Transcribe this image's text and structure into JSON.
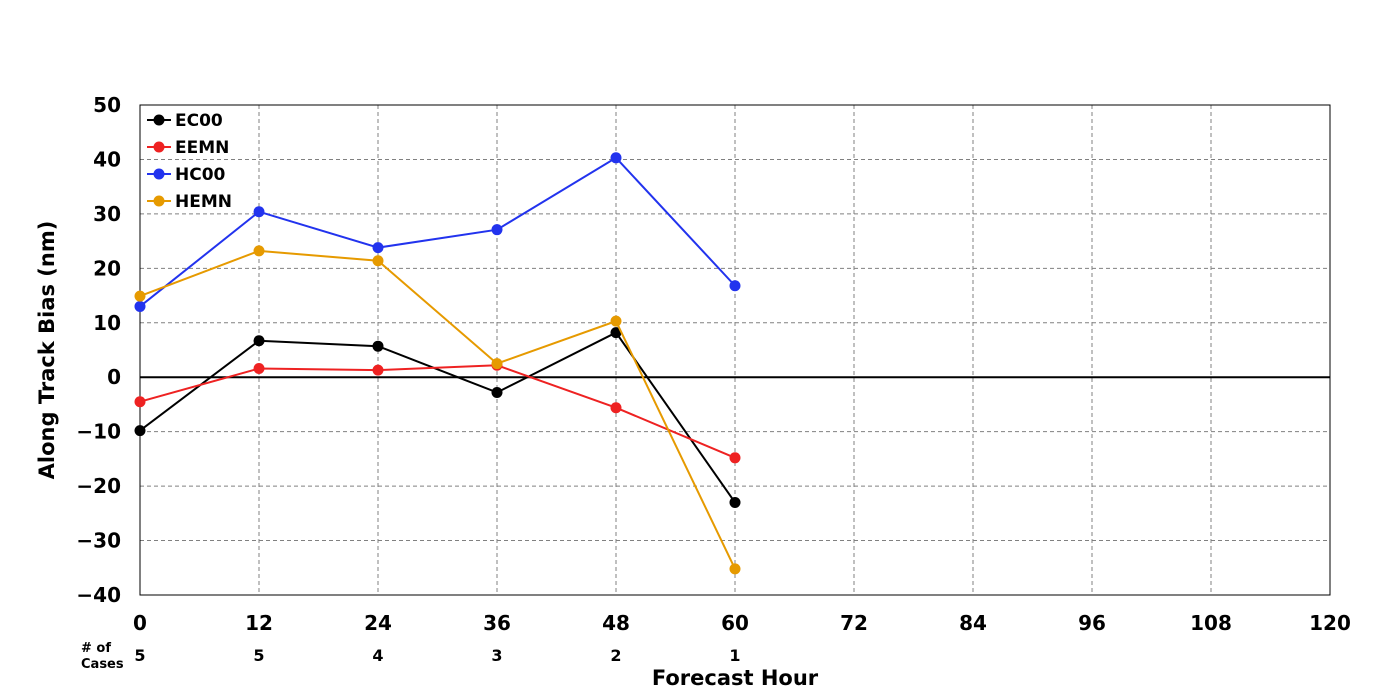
{
  "chart_data": {
    "type": "line",
    "xlabel": "Forecast Hour",
    "ylabel": "Along Track Bias (nm)",
    "xlim": [
      0,
      120
    ],
    "ylim": [
      -40,
      50
    ],
    "xticks": [
      0,
      12,
      24,
      36,
      48,
      60,
      72,
      84,
      96,
      108,
      120
    ],
    "yticks": [
      -40,
      -30,
      -20,
      -10,
      0,
      10,
      20,
      30,
      40,
      50
    ],
    "ytick_labels": [
      "−40",
      "−30",
      "−20",
      "−10",
      "0",
      "10",
      "20",
      "30",
      "40",
      "50"
    ],
    "grid": true,
    "legend_position": "top-left",
    "x": [
      0,
      12,
      24,
      36,
      48,
      60
    ],
    "series": [
      {
        "name": "EC00",
        "color": "#000000",
        "values": [
          -9.8,
          6.7,
          5.7,
          -2.8,
          8.2,
          -23.0
        ]
      },
      {
        "name": "EEMN",
        "color": "#ee2222",
        "values": [
          -4.5,
          1.6,
          1.3,
          2.2,
          -5.6,
          -14.8
        ]
      },
      {
        "name": "HC00",
        "color": "#2233ee",
        "values": [
          13.0,
          30.4,
          23.8,
          27.1,
          40.3,
          16.8
        ]
      },
      {
        "name": "HEMN",
        "color": "#e69a00",
        "values": [
          14.9,
          23.2,
          21.4,
          2.5,
          10.3,
          -35.2
        ]
      }
    ],
    "cases": {
      "label_line1": "# of",
      "label_line2": "Cases",
      "x": [
        0,
        12,
        24,
        36,
        48,
        60
      ],
      "counts": [
        "5",
        "5",
        "4",
        "3",
        "2",
        "1"
      ]
    }
  }
}
